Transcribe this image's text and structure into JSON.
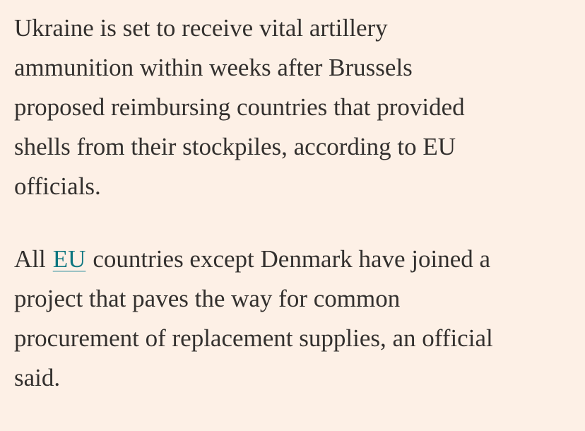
{
  "article": {
    "paragraphs": [
      {
        "lines": [
          "Ukraine is set to receive vital artillery",
          "ammunition within weeks after Brussels",
          "proposed reimbursing countries that provided",
          "shells from their stockpiles, according to EU",
          "officials."
        ]
      },
      {
        "first_line": {
          "before": "All",
          "link": "EU",
          "after": "countries except Denmark have joined a"
        },
        "lines": [
          "project that paves the way for common",
          "procurement of replacement supplies, an official",
          "said."
        ]
      }
    ]
  }
}
